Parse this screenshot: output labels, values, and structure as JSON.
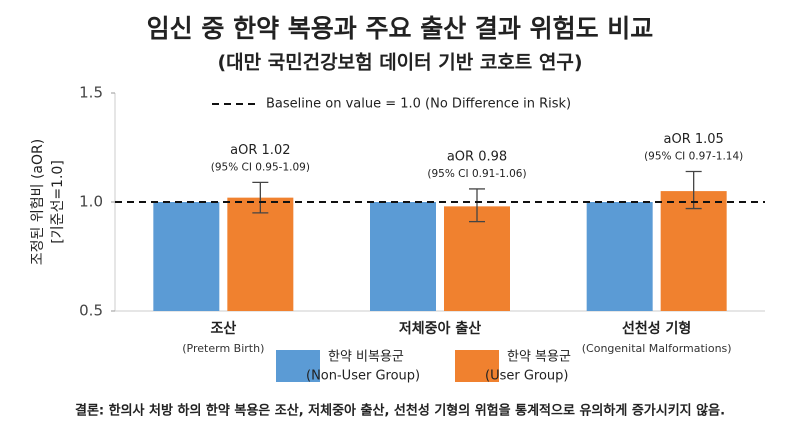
{
  "chart_data": {
    "type": "bar",
    "title": "임신 중 한약 복용과 주요 출산 결과 위험도 비교",
    "subtitle": "(대만 국민건강보험 데이터 기반 코호트 연구)",
    "y_label": "조정된 위험비 (aOR)",
    "y_label_sub": "[기준선=1.0]",
    "categories": [
      "조산",
      "저체중아 출산",
      "선천성 기형"
    ],
    "categories_en": [
      "(Preterm Birth)",
      null,
      "(Congenital Malformations)"
    ],
    "series": [
      {
        "name": "한약 비복용군",
        "name_en": "(Non-User Group)",
        "color": "#5b9bd5",
        "values": [
          1,
          1,
          1
        ]
      },
      {
        "name": "한약 복용군",
        "name_en": "(User Group)",
        "color": "#f0812f",
        "values": [
          1.02,
          0.98,
          1.05
        ],
        "value_labels": [
          "aOR 1.02",
          "aOR 0.98",
          "aOR 1.05"
        ],
        "ci_low": [
          0.95,
          0.91,
          0.97
        ],
        "ci_high": [
          1.09,
          1.06,
          1.14
        ],
        "ci_labels": [
          "(95% CI 0.95-1.09)",
          "(95% CI 0.91-1.06)",
          "(95% CI 0.97-1.14)"
        ]
      }
    ],
    "baseline": 1,
    "baseline_label": "Baseline on value = 1.0 (No Difference in Risk)",
    "ylim": [
      0.5,
      1.5
    ],
    "yticks": [
      0.5,
      {
        "value": 1,
        "label": "1.0"
      },
      1.5
    ],
    "legend": "bottom",
    "footnote": "결론: 한의사 처방 하의 한약 복용은 조산, 저체중아 출산, 선천성 기형의 위험을 통계적으로 유의하게 증가시키지 않음."
  }
}
